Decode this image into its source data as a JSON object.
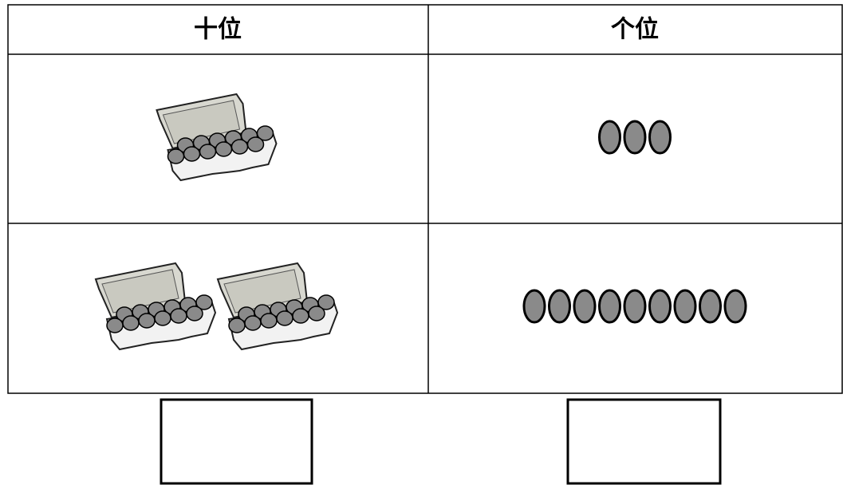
{
  "table": {
    "headers": [
      "十位",
      "个位"
    ],
    "rows": [
      {
        "cartons": 1,
        "eggs": 3
      },
      {
        "cartons": 2,
        "eggs": 9
      }
    ]
  }
}
